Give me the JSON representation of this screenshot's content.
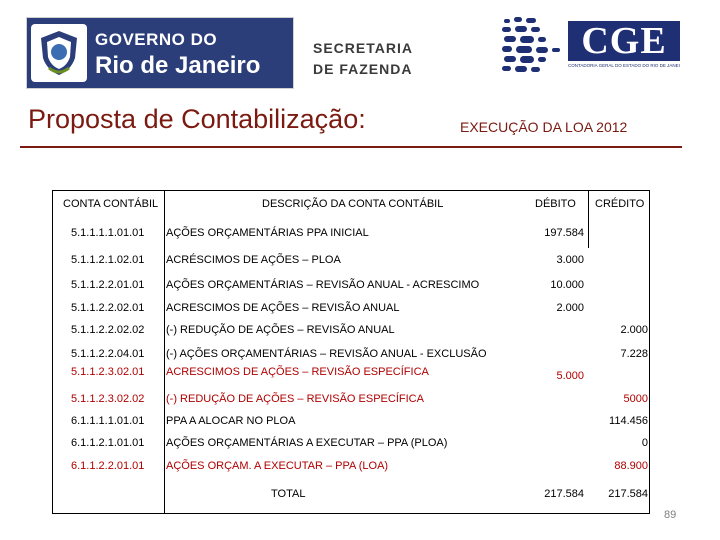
{
  "header": {
    "gov_line1": "GOVERNO DO",
    "gov_line2": "Rio de Janeiro",
    "sec_line1": "SECRETARIA",
    "sec_line2": "DE FAZENDA",
    "cge_text": "CGE",
    "cge_subtitle": "CONTADORIA GERAL DO ESTADO DO RIO DE JANEIRO",
    "brand_color": "#2b3e7a"
  },
  "title": {
    "main": "Proposta de Contabilização:",
    "sub": "EXECUÇÃO DA LOA 2012",
    "color": "#7a1a10"
  },
  "table": {
    "headers": {
      "conta": "CONTA CONTÁBIL",
      "descricao": "DESCRIÇÃO DA CONTA CONTÁBIL",
      "debito": "DÉBITO",
      "credito": "CRÉDITO"
    },
    "rows": [
      {
        "conta": "5.1.1.1.1.01.01",
        "descricao": "AÇÕES ORÇAMENTÁRIAS PPA INICIAL",
        "debito": "197.584",
        "credito": "",
        "red": false
      },
      {
        "conta": "5.1.1.2.1.02.01",
        "descricao": "ACRÉSCIMOS DE AÇÕES – PLOA",
        "debito": "3.000",
        "credito": "",
        "red": false
      },
      {
        "conta": "5.1.1.2.2.01.01",
        "descricao": "AÇÕES ORÇAMENTÁRIAS – REVISÃO ANUAL - ACRESCIMO",
        "debito": "10.000",
        "credito": "",
        "red": false
      },
      {
        "conta": "5.1.1.2.2.02.01",
        "descricao": "ACRESCIMOS DE AÇÕES – REVISÃO ANUAL",
        "debito": "2.000",
        "credito": "",
        "red": false
      },
      {
        "conta": "5.1.1.2.2.02.02",
        "descricao": "(-) REDUÇÃO DE AÇÕES – REVISÃO ANUAL",
        "debito": "",
        "credito": "2.000",
        "red": false
      },
      {
        "conta": "5.1.1.2.2.04.01",
        "descricao": "(-) AÇÕES ORÇAMENTÁRIAS – REVISÃO ANUAL - EXCLUSÃO",
        "debito": "",
        "credito": "7.228",
        "red": false
      },
      {
        "conta": "5.1.1.2.3.02.01",
        "descricao": "ACRESCIMOS DE AÇÕES – REVISÃO ESPECÍFICA",
        "debito": "5.000",
        "credito": "",
        "red": true
      },
      {
        "conta": "5.1.1.2.3.02.02",
        "descricao": "(-) REDUÇÃO DE AÇÕES – REVISÃO ESPECÍFICA",
        "debito": "",
        "credito": "5000",
        "red": true
      },
      {
        "conta": "6.1.1.1.1.01.01",
        "descricao": "PPA A ALOCAR NO PLOA",
        "debito": "",
        "credito": "114.456",
        "red": false
      },
      {
        "conta": "6.1.1.2.1.01.01",
        "descricao": "AÇÕES ORÇAMENTÁRIAS A EXECUTAR – PPA (PLOA)",
        "debito": "",
        "credito": "0",
        "red": false
      },
      {
        "conta": "6.1.1.2.2.01.01",
        "descricao": "AÇÕES ORÇAM. A EXECUTAR – PPA (LOA)",
        "debito": "",
        "credito": "88.900",
        "red": true
      }
    ],
    "total": {
      "label": "TOTAL",
      "debito": "217.584",
      "credito": "217.584"
    },
    "accent_red": "#b00000"
  },
  "page_number": "89"
}
